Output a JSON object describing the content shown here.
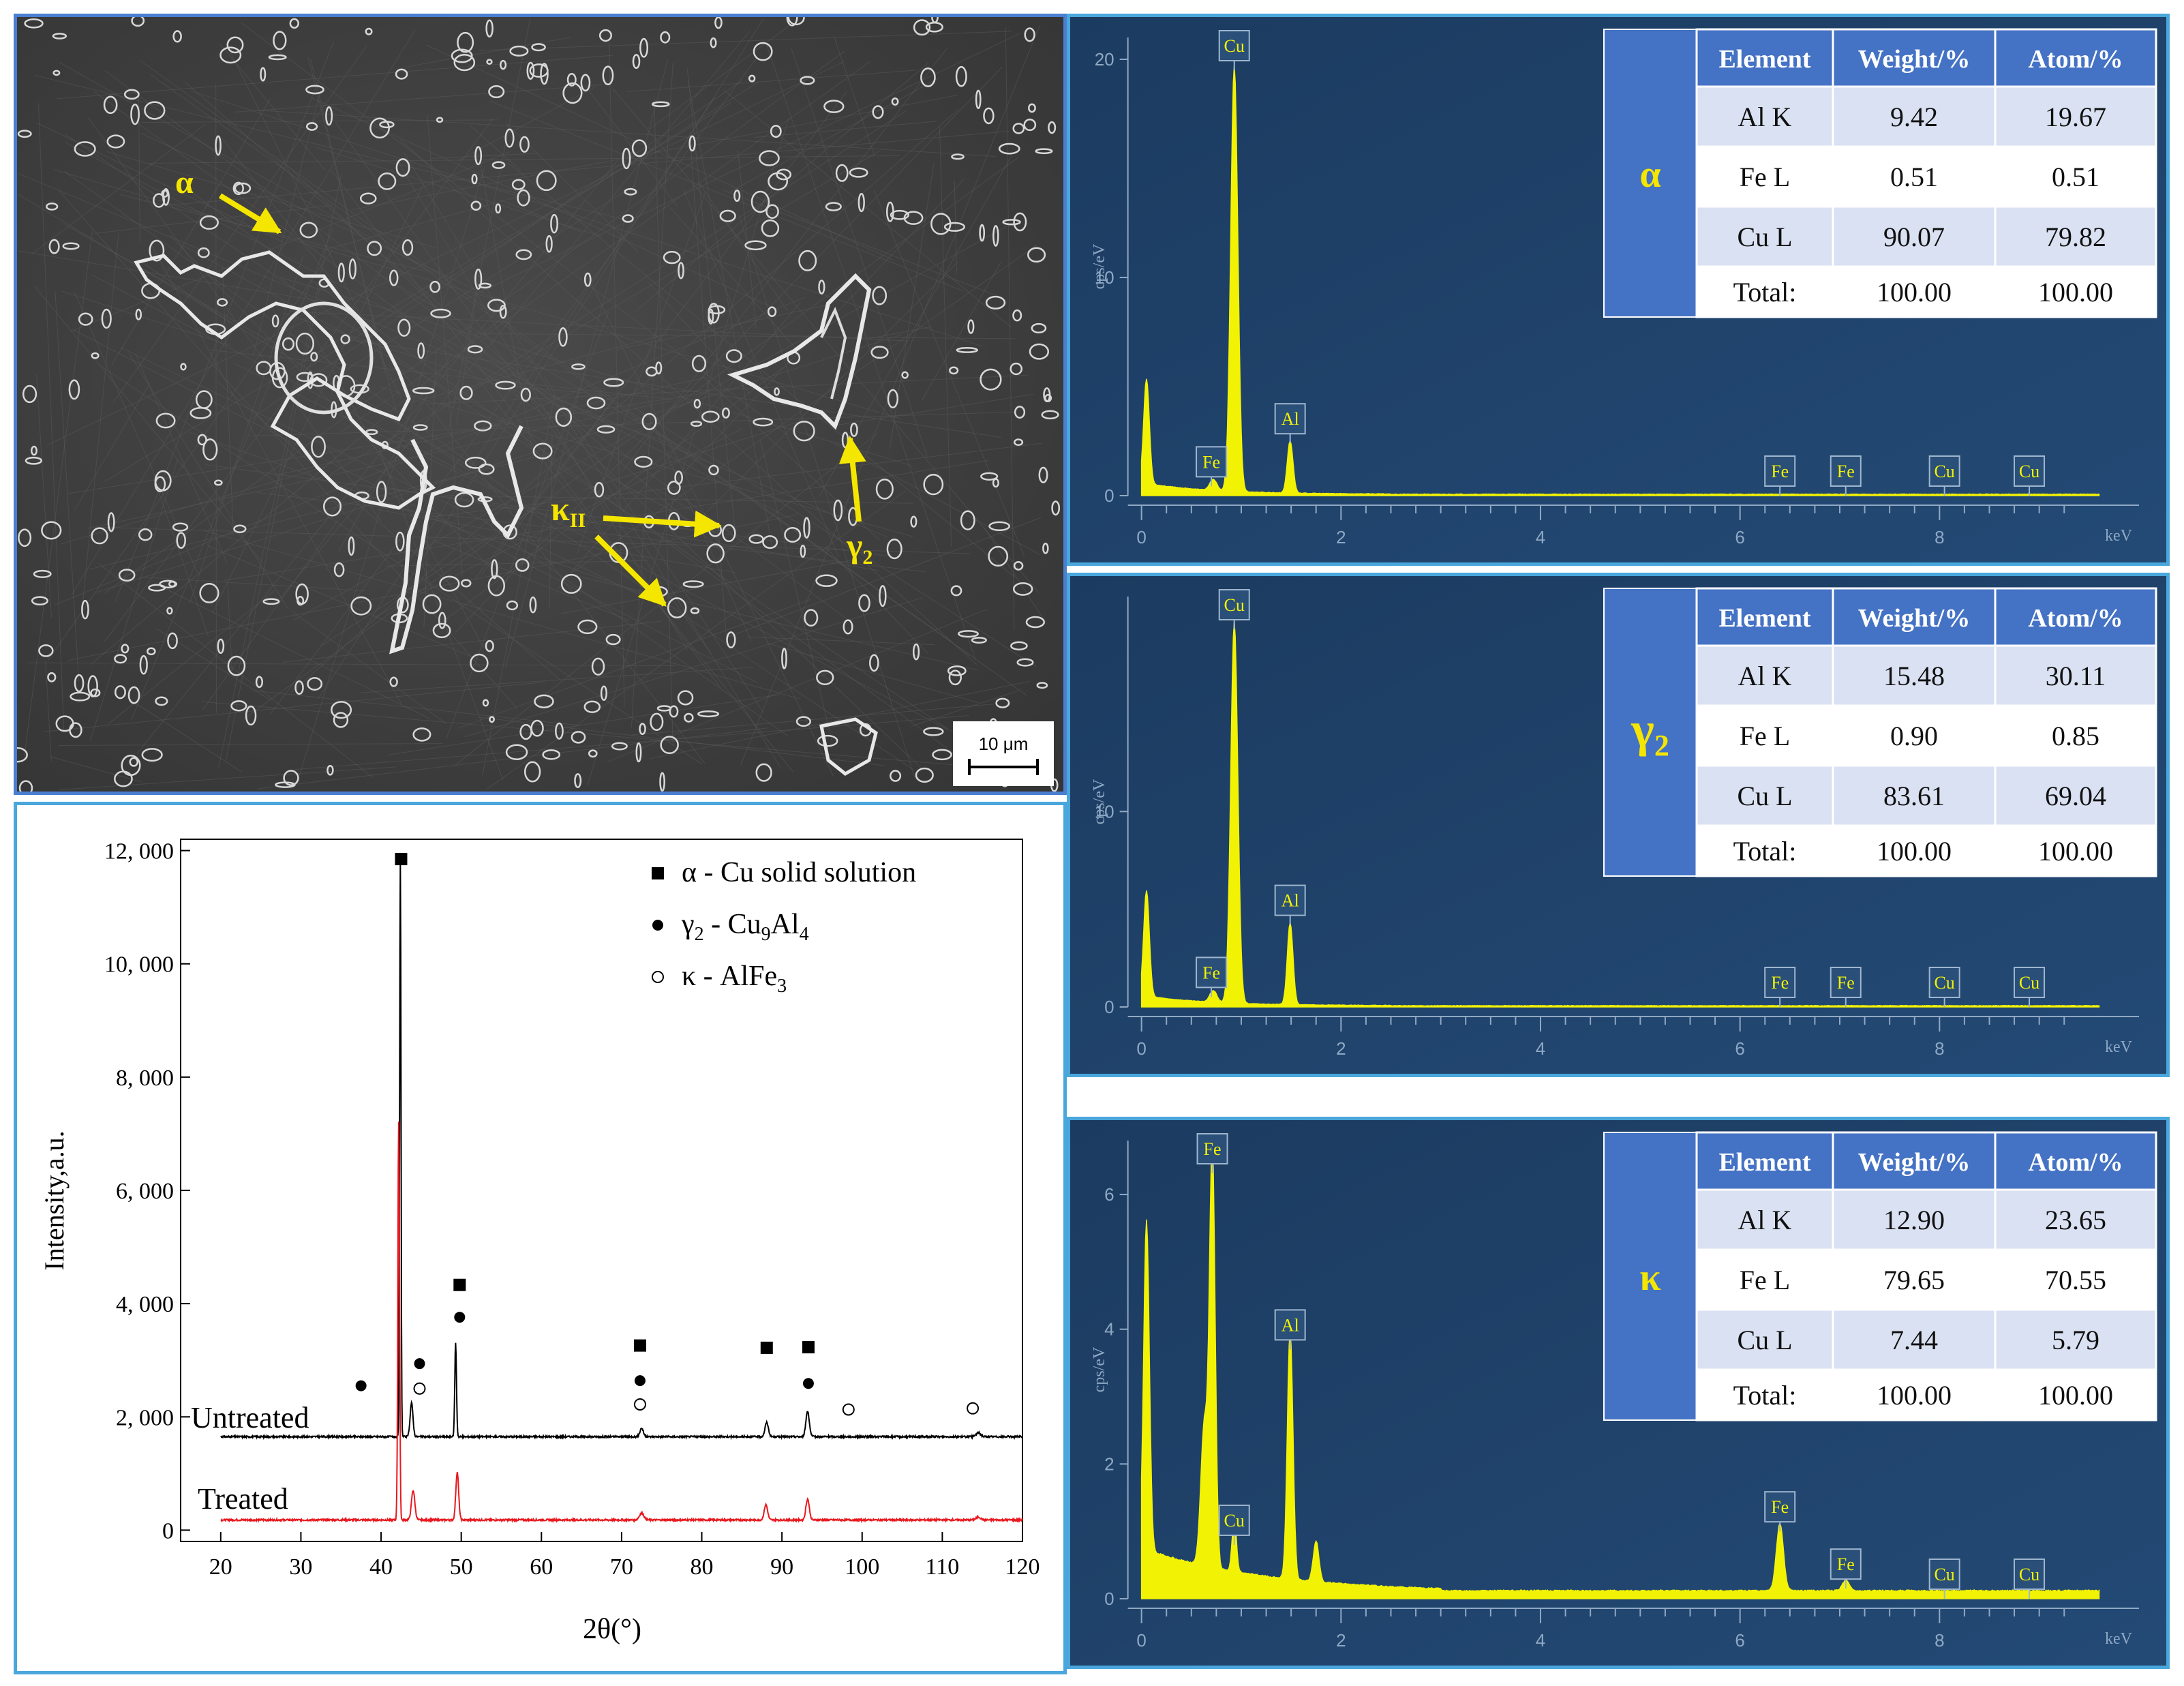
{
  "sem": {
    "labels": {
      "alpha": "α",
      "kappa": "κ",
      "kappa_sub": "II",
      "gamma": "γ",
      "gamma_sub": "2"
    },
    "scale_bar": "10 μm",
    "arrow_color": "#f5e600"
  },
  "chart_data": [
    {
      "id": "xrd",
      "type": "line",
      "xlabel": "2θ(°)",
      "ylabel": "Intensity,a.u.",
      "xlim": [
        15,
        120
      ],
      "ylim": [
        -200,
        12200
      ],
      "xticks": [
        20,
        30,
        40,
        50,
        60,
        70,
        80,
        90,
        100,
        110,
        120
      ],
      "yticks": [
        0,
        2000,
        4000,
        6000,
        8000,
        10000,
        12000
      ],
      "ytick_labels": [
        "0",
        "2, 000",
        "4, 000",
        "6, 000",
        "8, 000",
        "10, 000",
        "12, 000"
      ],
      "series": [
        {
          "name": "Untreated",
          "color": "#000000",
          "baseline": 1650,
          "peaks": [
            [
              42.4,
              11850,
              0.12
            ],
            [
              43.8,
              2250,
              0.25
            ],
            [
              49.3,
              3300,
              0.15
            ],
            [
              72.5,
              1800,
              0.3
            ],
            [
              88.1,
              1900,
              0.3
            ],
            [
              93.2,
              2100,
              0.3
            ],
            [
              114.5,
              1720,
              0.4
            ]
          ]
        },
        {
          "name": "Treated",
          "color": "#e8191f",
          "baseline": 180,
          "peaks": [
            [
              42.2,
              7200,
              0.15
            ],
            [
              44.0,
              700,
              0.3
            ],
            [
              49.5,
              1020,
              0.25
            ],
            [
              72.5,
              300,
              0.4
            ],
            [
              88.0,
              450,
              0.3
            ],
            [
              93.2,
              550,
              0.3
            ],
            [
              114.5,
              230,
              0.4
            ]
          ]
        }
      ],
      "legend": [
        {
          "symbol": "filled-square",
          "phase": "α",
          "sep": "-",
          "text": "Cu solid solution"
        },
        {
          "symbol": "filled-circle",
          "phase": "γ",
          "phase_sub": "2",
          "sep": "-",
          "formula": [
            "Cu",
            "9",
            "Al",
            "4"
          ]
        },
        {
          "symbol": "open-circle",
          "phase": "κ",
          "sep": "-",
          "formula": [
            "AlFe",
            "3"
          ]
        }
      ],
      "markers": [
        {
          "symbol": "filled-square",
          "x": 42.5,
          "y": 11850
        },
        {
          "symbol": "filled-square",
          "x": 49.8,
          "y": 4330
        },
        {
          "symbol": "filled-square",
          "x": 72.3,
          "y": 3260
        },
        {
          "symbol": "filled-square",
          "x": 88.1,
          "y": 3220
        },
        {
          "symbol": "filled-square",
          "x": 93.3,
          "y": 3230
        },
        {
          "symbol": "filled-circle",
          "x": 37.5,
          "y": 2550
        },
        {
          "symbol": "filled-circle",
          "x": 44.8,
          "y": 2940
        },
        {
          "symbol": "filled-circle",
          "x": 49.8,
          "y": 3760
        },
        {
          "symbol": "filled-circle",
          "x": 72.3,
          "y": 2640
        },
        {
          "symbol": "filled-circle",
          "x": 93.3,
          "y": 2590
        },
        {
          "symbol": "open-circle",
          "x": 44.8,
          "y": 2500
        },
        {
          "symbol": "open-circle",
          "x": 72.3,
          "y": 2220
        },
        {
          "symbol": "open-circle",
          "x": 98.3,
          "y": 2130
        },
        {
          "symbol": "open-circle",
          "x": 113.8,
          "y": 2150
        }
      ],
      "annotations": [
        "Untreated",
        "Treated"
      ]
    },
    {
      "id": "eds-alpha",
      "type": "area",
      "phase": "α",
      "xlabel": "keV",
      "ylabel": "cps/eV",
      "xlim": [
        -0.1,
        10.0
      ],
      "ylim": [
        0,
        21
      ],
      "xticks": [
        0,
        2,
        4,
        6,
        8
      ],
      "yticks": [
        0,
        10,
        20
      ],
      "peaks": [
        [
          0.05,
          4.8,
          0.04
        ],
        [
          0.72,
          0.5,
          0.05
        ],
        [
          0.93,
          19.5,
          0.05
        ],
        [
          1.49,
          2.4,
          0.04
        ]
      ],
      "peak_labels": [
        {
          "label": "Cu",
          "x": 0.93
        },
        {
          "label": "Fe",
          "x": 0.7
        },
        {
          "label": "Al",
          "x": 1.49
        },
        {
          "label": "Fe",
          "x": 6.4
        },
        {
          "label": "Fe",
          "x": 7.06
        },
        {
          "label": "Cu",
          "x": 8.05
        },
        {
          "label": "Cu",
          "x": 8.9
        }
      ],
      "table": {
        "headers": [
          "Element",
          "Weight/%",
          "Atom/%"
        ],
        "rows": [
          [
            "Al K",
            "9.42",
            "19.67"
          ],
          [
            "Fe L",
            "0.51",
            "0.51"
          ],
          [
            "Cu L",
            "90.07",
            "79.82"
          ],
          [
            "Total:",
            "100.00",
            "100.00"
          ]
        ]
      }
    },
    {
      "id": "eds-gamma2",
      "type": "area",
      "phase": "γ",
      "phase_sub": "2",
      "xlabel": "keV",
      "ylabel": "cps/eV",
      "xlim": [
        -0.1,
        10.0
      ],
      "ylim": [
        0,
        21
      ],
      "xticks": [
        0,
        2,
        4,
        6,
        8
      ],
      "yticks": [
        0,
        10
      ],
      "peaks": [
        [
          0.05,
          5.4,
          0.04
        ],
        [
          0.72,
          0.6,
          0.05
        ],
        [
          0.93,
          19.5,
          0.05
        ],
        [
          1.49,
          4.2,
          0.04
        ]
      ],
      "peak_labels": [
        {
          "label": "Cu",
          "x": 0.93
        },
        {
          "label": "Fe",
          "x": 0.7
        },
        {
          "label": "Al",
          "x": 1.49
        },
        {
          "label": "Fe",
          "x": 6.4
        },
        {
          "label": "Fe",
          "x": 7.06
        },
        {
          "label": "Cu",
          "x": 8.05
        },
        {
          "label": "Cu",
          "x": 8.9
        }
      ],
      "table": {
        "headers": [
          "Element",
          "Weight/%",
          "Atom/%"
        ],
        "rows": [
          [
            "Al K",
            "15.48",
            "30.11"
          ],
          [
            "Fe L",
            "0.90",
            "0.85"
          ],
          [
            "Cu L",
            "83.61",
            "69.04"
          ],
          [
            "Total:",
            "100.00",
            "100.00"
          ]
        ]
      }
    },
    {
      "id": "eds-kappa",
      "type": "area",
      "phase": "κ",
      "xlabel": "keV",
      "ylabel": "cps/eV",
      "xlim": [
        -0.1,
        10.0
      ],
      "ylim": [
        0,
        6.8
      ],
      "xticks": [
        0,
        2,
        4,
        6,
        8
      ],
      "yticks": [
        0,
        2,
        4,
        6
      ],
      "peaks": [
        [
          0.05,
          4.9,
          0.04
        ],
        [
          0.63,
          2.1,
          0.05
        ],
        [
          0.71,
          6.2,
          0.04
        ],
        [
          0.93,
          0.8,
          0.03
        ],
        [
          1.49,
          3.7,
          0.04
        ],
        [
          1.75,
          0.6,
          0.04
        ],
        [
          6.4,
          1.0,
          0.05
        ],
        [
          7.06,
          0.15,
          0.05
        ]
      ],
      "peak_labels": [
        {
          "label": "Fe",
          "x": 0.71
        },
        {
          "label": "Cu",
          "x": 0.93
        },
        {
          "label": "Al",
          "x": 1.49
        },
        {
          "label": "Fe",
          "x": 6.4
        },
        {
          "label": "Fe",
          "x": 7.06
        },
        {
          "label": "Cu",
          "x": 8.05
        },
        {
          "label": "Cu",
          "x": 8.9
        }
      ],
      "table": {
        "headers": [
          "Element",
          "Weight/%",
          "Atom/%"
        ],
        "rows": [
          [
            "Al K",
            "12.90",
            "23.65"
          ],
          [
            "Fe L",
            "79.65",
            "70.55"
          ],
          [
            "Cu L",
            "7.44",
            "5.79"
          ],
          [
            "Total:",
            "100.00",
            "100.00"
          ]
        ]
      }
    }
  ]
}
